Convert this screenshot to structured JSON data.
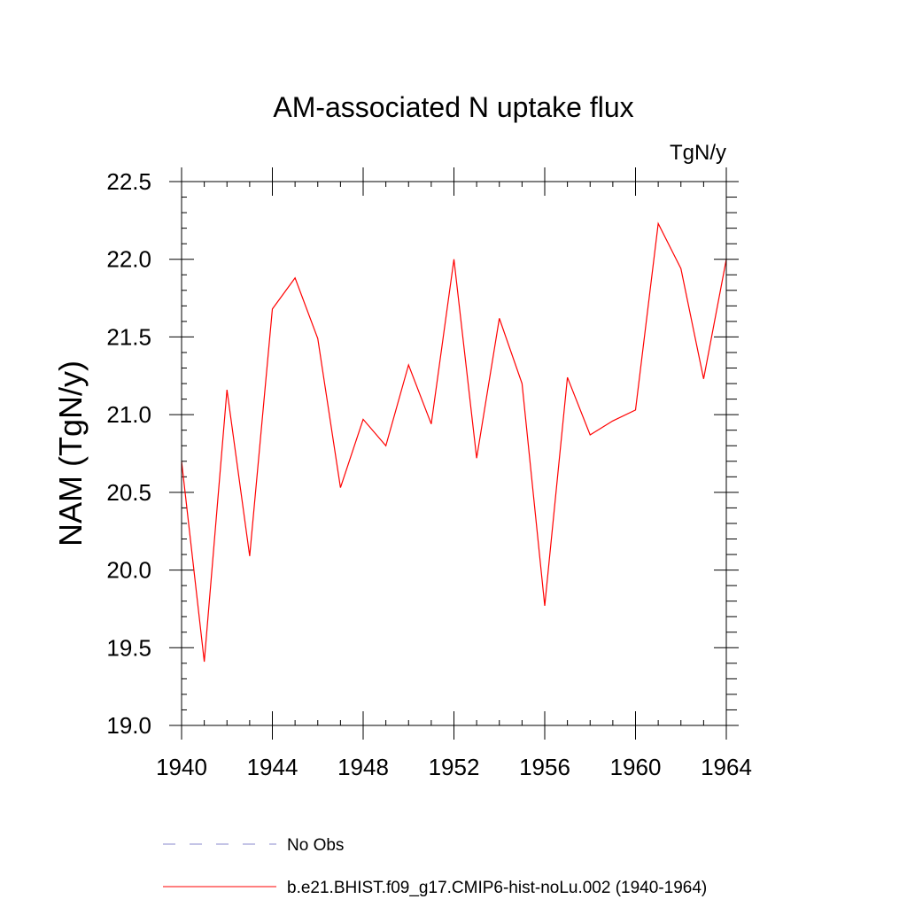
{
  "chart_data": {
    "type": "line",
    "title": "AM-associated N uptake flux",
    "units_label": "TgN/y",
    "ylabel": "NAM  (TgN/y)",
    "xlabel": "",
    "xlim": [
      1940,
      1964
    ],
    "ylim": [
      19.0,
      22.5
    ],
    "x_ticks": [
      1940,
      1944,
      1948,
      1952,
      1956,
      1960,
      1964
    ],
    "x_tick_labels": [
      "1940",
      "1944",
      "1948",
      "1952",
      "1956",
      "1960",
      "1964"
    ],
    "y_ticks": [
      19.0,
      19.5,
      20.0,
      20.5,
      21.0,
      21.5,
      22.0,
      22.5
    ],
    "y_tick_labels": [
      "19.0",
      "19.5",
      "20.0",
      "20.5",
      "21.0",
      "21.5",
      "22.0",
      "22.5"
    ],
    "grid": false,
    "legend_position": "bottom",
    "legend": [
      {
        "label": "No Obs",
        "color": "#8888cc",
        "style": "dashed"
      },
      {
        "label": "b.e21.BHIST.f09_g17.CMIP6-hist-noLu.002 (1940-1964)",
        "color": "#ff0000",
        "style": "solid"
      }
    ],
    "series": [
      {
        "name": "b.e21.BHIST.f09_g17.CMIP6-hist-noLu.002 (1940-1964)",
        "color": "#ff0000",
        "x": [
          1940,
          1941,
          1942,
          1943,
          1944,
          1945,
          1946,
          1947,
          1948,
          1949,
          1950,
          1951,
          1952,
          1953,
          1954,
          1955,
          1956,
          1957,
          1958,
          1959,
          1960,
          1961,
          1962,
          1963,
          1964
        ],
        "y": [
          20.7,
          19.41,
          21.16,
          20.09,
          21.68,
          21.88,
          21.49,
          20.53,
          20.97,
          20.8,
          21.32,
          20.94,
          22.0,
          20.72,
          21.62,
          21.2,
          19.77,
          21.24,
          20.87,
          20.96,
          21.03,
          22.23,
          21.94,
          21.23,
          22.0
        ]
      }
    ]
  }
}
